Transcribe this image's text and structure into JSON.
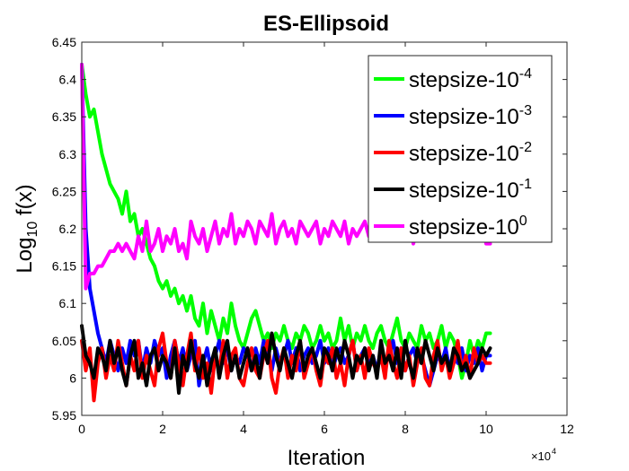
{
  "chart_data": {
    "type": "line",
    "title": "ES-Ellipsoid",
    "xlabel": "Iteration",
    "ylabel_main": "Log",
    "ylabel_sub": "10",
    "ylabel_tail": " f(x)",
    "x_exponent_base": "×10",
    "x_exponent_power": "4",
    "xlim": [
      0,
      12
    ],
    "ylim": [
      5.95,
      6.45
    ],
    "xticks": [
      0,
      2,
      4,
      6,
      8,
      10,
      12
    ],
    "xtick_labels": [
      "0",
      "2",
      "4",
      "6",
      "8",
      "10",
      "12"
    ],
    "yticks": [
      5.95,
      6,
      6.05,
      6.1,
      6.15,
      6.2,
      6.25,
      6.3,
      6.35,
      6.4,
      6.45
    ],
    "ytick_labels": [
      "5.95",
      "6",
      "6.05",
      "6.1",
      "6.15",
      "6.2",
      "6.25",
      "6.3",
      "6.35",
      "6.4",
      "6.45"
    ],
    "x_units_note": "x values in units of 10^4 iterations",
    "legend_position": "top-right",
    "series": [
      {
        "name": "stepsize-10^-4",
        "legend_base": "stepsize-10",
        "legend_exp": "-4",
        "color": "#00ff00",
        "x": [
          0,
          0.1,
          0.2,
          0.3,
          0.4,
          0.5,
          0.6,
          0.7,
          0.8,
          0.9,
          1.0,
          1.1,
          1.2,
          1.3,
          1.4,
          1.5,
          1.6,
          1.7,
          1.8,
          1.9,
          2.0,
          2.1,
          2.2,
          2.3,
          2.4,
          2.5,
          2.6,
          2.7,
          2.8,
          2.9,
          3.0,
          3.1,
          3.2,
          3.3,
          3.4,
          3.5,
          3.6,
          3.7,
          3.8,
          3.9,
          4.0,
          4.1,
          4.2,
          4.3,
          4.4,
          4.5,
          4.6,
          4.7,
          4.8,
          4.9,
          5.0,
          5.1,
          5.2,
          5.3,
          5.4,
          5.5,
          5.6,
          5.7,
          5.8,
          5.9,
          6.0,
          6.1,
          6.2,
          6.3,
          6.4,
          6.5,
          6.6,
          6.7,
          6.8,
          6.9,
          7.0,
          7.1,
          7.2,
          7.3,
          7.4,
          7.5,
          7.6,
          7.7,
          7.8,
          7.9,
          8.0,
          8.1,
          8.2,
          8.3,
          8.4,
          8.5,
          8.6,
          8.7,
          8.8,
          8.9,
          9.0,
          9.1,
          9.2,
          9.3,
          9.4,
          9.5,
          9.6,
          9.7,
          9.8,
          9.9,
          10.0,
          10.1
        ],
        "values": [
          6.42,
          6.38,
          6.35,
          6.36,
          6.33,
          6.3,
          6.28,
          6.26,
          6.25,
          6.24,
          6.22,
          6.25,
          6.21,
          6.22,
          6.19,
          6.2,
          6.18,
          6.16,
          6.15,
          6.13,
          6.12,
          6.13,
          6.11,
          6.12,
          6.1,
          6.11,
          6.09,
          6.11,
          6.08,
          6.07,
          6.1,
          6.06,
          6.09,
          6.07,
          6.05,
          6.08,
          6.06,
          6.1,
          6.07,
          6.05,
          6.04,
          6.06,
          6.08,
          6.09,
          6.07,
          6.05,
          6.06,
          6.04,
          6.06,
          6.05,
          6.07,
          6.05,
          6.04,
          6.06,
          6.05,
          6.07,
          6.06,
          6.04,
          6.05,
          6.07,
          6.05,
          6.06,
          6.04,
          6.05,
          6.08,
          6.05,
          6.07,
          6.04,
          6.06,
          6.05,
          6.07,
          6.05,
          6.04,
          6.06,
          6.07,
          6.05,
          6.04,
          6.06,
          6.08,
          6.05,
          6.04,
          6.06,
          6.05,
          6.04,
          6.07,
          6.05,
          6.06,
          6.04,
          6.05,
          6.07,
          6.04,
          6.06,
          6.05,
          6.03,
          6.0,
          6.02,
          6.05,
          6.03,
          6.05,
          6.04,
          6.06,
          6.06
        ]
      },
      {
        "name": "stepsize-10^-3",
        "legend_base": "stepsize-10",
        "legend_exp": "-3",
        "color": "#0000ff",
        "x": [
          0,
          0.1,
          0.2,
          0.3,
          0.4,
          0.5,
          0.6,
          0.7,
          0.8,
          0.9,
          1.0,
          1.1,
          1.2,
          1.3,
          1.4,
          1.5,
          1.6,
          1.7,
          1.8,
          1.9,
          2.0,
          2.1,
          2.2,
          2.3,
          2.4,
          2.5,
          2.6,
          2.7,
          2.8,
          2.9,
          3.0,
          3.1,
          3.2,
          3.3,
          3.4,
          3.5,
          3.6,
          3.7,
          3.8,
          3.9,
          4.0,
          4.1,
          4.2,
          4.3,
          4.4,
          4.5,
          4.6,
          4.7,
          4.8,
          4.9,
          5.0,
          5.1,
          5.2,
          5.3,
          5.4,
          5.5,
          5.6,
          5.7,
          5.8,
          5.9,
          6.0,
          6.1,
          6.2,
          6.3,
          6.4,
          6.5,
          6.6,
          6.7,
          6.8,
          6.9,
          7.0,
          7.1,
          7.2,
          7.3,
          7.4,
          7.5,
          7.6,
          7.7,
          7.8,
          7.9,
          8.0,
          8.1,
          8.2,
          8.3,
          8.4,
          8.5,
          8.6,
          8.7,
          8.8,
          8.9,
          9.0,
          9.1,
          9.2,
          9.3,
          9.4,
          9.5,
          9.6,
          9.7,
          9.8,
          9.9,
          10.0,
          10.1
        ],
        "values": [
          6.42,
          6.2,
          6.12,
          6.09,
          6.06,
          6.04,
          6.02,
          6.05,
          6.03,
          6.01,
          6.04,
          6.02,
          6.05,
          6.03,
          6.05,
          6.01,
          6.04,
          6.02,
          6.05,
          6.03,
          6.04,
          6.0,
          6.03,
          6.05,
          6.02,
          6.04,
          6.01,
          6.03,
          6.05,
          5.99,
          6.02,
          6.04,
          6.01,
          6.03,
          6.05,
          6.02,
          6.04,
          6.01,
          6.03,
          6.02,
          6.04,
          6.03,
          6.01,
          6.04,
          6.02,
          6.05,
          6.03,
          6.01,
          6.04,
          6.02,
          6.03,
          6.05,
          6.02,
          6.04,
          6.01,
          6.03,
          6.04,
          6.02,
          6.03,
          6.05,
          6.02,
          6.04,
          6.01,
          6.03,
          6.04,
          6.02,
          6.03,
          6.05,
          6.01,
          6.03,
          6.04,
          6.02,
          6.03,
          6.01,
          6.04,
          6.02,
          6.03,
          6.05,
          6.02,
          6.04,
          6.01,
          6.03,
          6.04,
          6.02,
          6.03,
          6.01,
          5.99,
          6.01,
          6.03,
          6.02,
          6.04,
          6.01,
          6.03,
          6.02,
          6.04,
          6.01,
          6.03,
          6.02,
          6.04,
          6.01,
          6.03,
          6.03
        ]
      },
      {
        "name": "stepsize-10^-2",
        "legend_base": "stepsize-10",
        "legend_exp": "-2",
        "color": "#ff0000",
        "x": [
          0,
          0.1,
          0.2,
          0.3,
          0.4,
          0.5,
          0.6,
          0.7,
          0.8,
          0.9,
          1.0,
          1.1,
          1.2,
          1.3,
          1.4,
          1.5,
          1.6,
          1.7,
          1.8,
          1.9,
          2.0,
          2.1,
          2.2,
          2.3,
          2.4,
          2.5,
          2.6,
          2.7,
          2.8,
          2.9,
          3.0,
          3.1,
          3.2,
          3.3,
          3.4,
          3.5,
          3.6,
          3.7,
          3.8,
          3.9,
          4.0,
          4.1,
          4.2,
          4.3,
          4.4,
          4.5,
          4.6,
          4.7,
          4.8,
          4.9,
          5.0,
          5.1,
          5.2,
          5.3,
          5.4,
          5.5,
          5.6,
          5.7,
          5.8,
          5.9,
          6.0,
          6.1,
          6.2,
          6.3,
          6.4,
          6.5,
          6.6,
          6.7,
          6.8,
          6.9,
          7.0,
          7.1,
          7.2,
          7.3,
          7.4,
          7.5,
          7.6,
          7.7,
          7.8,
          7.9,
          8.0,
          8.1,
          8.2,
          8.3,
          8.4,
          8.5,
          8.6,
          8.7,
          8.8,
          8.9,
          9.0,
          9.1,
          9.2,
          9.3,
          9.4,
          9.5,
          9.6,
          9.7,
          9.8,
          9.9,
          10.0,
          10.1
        ],
        "values": [
          6.05,
          6.01,
          6.04,
          5.97,
          6.02,
          6.04,
          6.0,
          6.03,
          6.01,
          6.05,
          6.02,
          5.99,
          6.03,
          6.01,
          6.05,
          6.0,
          6.03,
          6.01,
          5.99,
          6.04,
          6.06,
          6.02,
          6.0,
          6.05,
          6.02,
          5.99,
          6.03,
          6.06,
          6.01,
          6.04,
          6.0,
          6.02,
          5.98,
          6.03,
          6.01,
          6.05,
          6.0,
          6.03,
          6.04,
          6.0,
          5.99,
          6.02,
          6.04,
          6.01,
          6.0,
          6.03,
          6.05,
          6.0,
          5.98,
          6.02,
          6.04,
          6.0,
          6.03,
          6.01,
          6.05,
          6.0,
          6.02,
          6.04,
          6.01,
          5.99,
          6.03,
          6.02,
          6.04,
          6.0,
          6.02,
          5.99,
          6.03,
          6.05,
          6.01,
          6.03,
          6.0,
          6.04,
          6.02,
          6.01,
          6.03,
          6.0,
          6.05,
          6.02,
          6.0,
          6.04,
          6.01,
          6.03,
          5.99,
          6.02,
          6.04,
          6.0,
          5.99,
          6.03,
          6.05,
          6.01,
          6.03,
          6.0,
          6.02,
          6.05,
          6.01,
          6.03,
          6.0,
          6.04,
          6.02,
          6.03,
          6.02,
          6.02
        ]
      },
      {
        "name": "stepsize-10^-1",
        "legend_base": "stepsize-10",
        "legend_exp": "-1",
        "color": "#000000",
        "x": [
          0,
          0.1,
          0.2,
          0.3,
          0.4,
          0.5,
          0.6,
          0.7,
          0.8,
          0.9,
          1.0,
          1.1,
          1.2,
          1.3,
          1.4,
          1.5,
          1.6,
          1.7,
          1.8,
          1.9,
          2.0,
          2.1,
          2.2,
          2.3,
          2.4,
          2.5,
          2.6,
          2.7,
          2.8,
          2.9,
          3.0,
          3.1,
          3.2,
          3.3,
          3.4,
          3.5,
          3.6,
          3.7,
          3.8,
          3.9,
          4.0,
          4.1,
          4.2,
          4.3,
          4.4,
          4.5,
          4.6,
          4.7,
          4.8,
          4.9,
          5.0,
          5.1,
          5.2,
          5.3,
          5.4,
          5.5,
          5.6,
          5.7,
          5.8,
          5.9,
          6.0,
          6.1,
          6.2,
          6.3,
          6.4,
          6.5,
          6.6,
          6.7,
          6.8,
          6.9,
          7.0,
          7.1,
          7.2,
          7.3,
          7.4,
          7.5,
          7.6,
          7.7,
          7.8,
          7.9,
          8.0,
          8.1,
          8.2,
          8.3,
          8.4,
          8.5,
          8.6,
          8.7,
          8.8,
          8.9,
          9.0,
          9.1,
          9.2,
          9.3,
          9.4,
          9.5,
          9.6,
          9.7,
          9.8,
          9.9,
          10.0,
          10.1
        ],
        "values": [
          6.07,
          6.03,
          6.02,
          6.0,
          6.04,
          6.03,
          6.01,
          6.05,
          6.02,
          6.04,
          6.01,
          5.99,
          6.03,
          6.05,
          6.0,
          6.02,
          5.99,
          6.03,
          6.04,
          6.01,
          6.03,
          6.02,
          6.0,
          6.04,
          5.98,
          6.03,
          6.01,
          6.05,
          6.02,
          6.0,
          6.03,
          5.99,
          6.02,
          6.04,
          6.0,
          6.03,
          6.05,
          6.01,
          6.03,
          6.0,
          6.02,
          6.04,
          6.01,
          6.03,
          6.0,
          6.04,
          6.02,
          6.06,
          6.03,
          6.01,
          6.04,
          6.02,
          6.0,
          6.03,
          6.05,
          6.01,
          6.03,
          6.04,
          6.02,
          6.0,
          6.04,
          6.03,
          6.01,
          6.04,
          6.02,
          6.05,
          6.03,
          6.0,
          6.03,
          6.02,
          6.04,
          6.01,
          6.03,
          6.0,
          6.05,
          6.02,
          6.03,
          6.01,
          6.04,
          6.0,
          6.05,
          6.02,
          6.0,
          6.04,
          6.02,
          6.05,
          6.03,
          6.01,
          6.04,
          6.02,
          6.03,
          6.01,
          6.04,
          6.03,
          6.01,
          6.02,
          6.0,
          6.01,
          6.02,
          6.04,
          6.03,
          6.04
        ]
      },
      {
        "name": "stepsize-10^0",
        "legend_base": "stepsize-10",
        "legend_exp": "0",
        "color": "#ff00ff",
        "x": [
          0,
          0.1,
          0.2,
          0.3,
          0.4,
          0.5,
          0.6,
          0.7,
          0.8,
          0.9,
          1.0,
          1.1,
          1.2,
          1.3,
          1.4,
          1.5,
          1.6,
          1.7,
          1.8,
          1.9,
          2.0,
          2.1,
          2.2,
          2.3,
          2.4,
          2.5,
          2.6,
          2.7,
          2.8,
          2.9,
          3.0,
          3.1,
          3.2,
          3.3,
          3.4,
          3.5,
          3.6,
          3.7,
          3.8,
          3.9,
          4.0,
          4.1,
          4.2,
          4.3,
          4.4,
          4.5,
          4.6,
          4.7,
          4.8,
          4.9,
          5.0,
          5.1,
          5.2,
          5.3,
          5.4,
          5.5,
          5.6,
          5.7,
          5.8,
          5.9,
          6.0,
          6.1,
          6.2,
          6.3,
          6.4,
          6.5,
          6.6,
          6.7,
          6.8,
          6.9,
          7.0,
          7.1,
          7.2,
          7.3,
          7.4,
          7.5,
          7.6,
          7.7,
          7.8,
          7.9,
          8.0,
          8.1,
          8.2,
          8.3,
          8.4,
          8.5,
          8.6,
          8.7,
          8.8,
          8.9,
          9.0,
          9.1,
          9.2,
          9.3,
          9.4,
          9.5,
          9.6,
          9.7,
          9.8,
          9.9,
          10.0,
          10.1
        ],
        "values": [
          6.42,
          6.12,
          6.14,
          6.14,
          6.15,
          6.15,
          6.16,
          6.17,
          6.17,
          6.18,
          6.17,
          6.18,
          6.17,
          6.16,
          6.19,
          6.17,
          6.21,
          6.17,
          6.18,
          6.2,
          6.17,
          6.19,
          6.18,
          6.2,
          6.17,
          6.18,
          6.16,
          6.21,
          6.19,
          6.18,
          6.2,
          6.17,
          6.19,
          6.21,
          6.18,
          6.2,
          6.19,
          6.22,
          6.18,
          6.2,
          6.19,
          6.21,
          6.2,
          6.18,
          6.21,
          6.2,
          6.19,
          6.22,
          6.18,
          6.2,
          6.21,
          6.19,
          6.2,
          6.18,
          6.21,
          6.2,
          6.19,
          6.2,
          6.21,
          6.18,
          6.2,
          6.19,
          6.21,
          6.2,
          6.19,
          6.21,
          6.18,
          6.2,
          6.19,
          6.2,
          6.21,
          6.19,
          6.2,
          6.19,
          6.21,
          6.2,
          6.19,
          6.2,
          6.21,
          6.2,
          6.19,
          6.21,
          6.18,
          6.2,
          6.19,
          6.21,
          6.2,
          6.22,
          6.19,
          6.2,
          6.19,
          6.21,
          6.2,
          6.19,
          6.2,
          6.21,
          6.19,
          6.2,
          6.19,
          6.21,
          6.18,
          6.18
        ]
      }
    ]
  }
}
